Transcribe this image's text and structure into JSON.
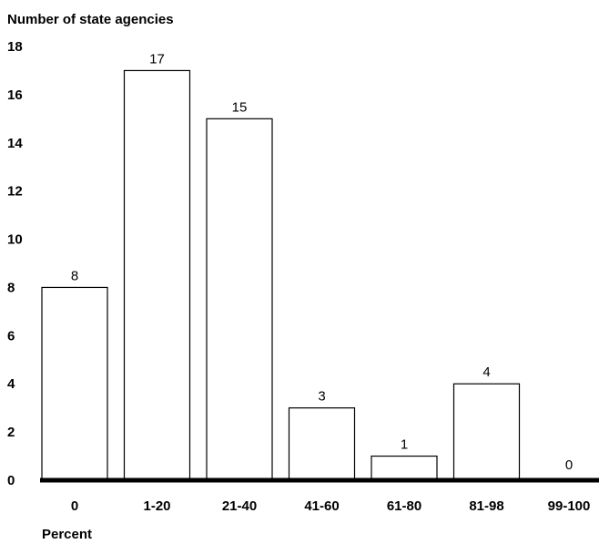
{
  "chart_data": {
    "type": "bar",
    "ylabel": "Number of state agencies",
    "xlabel": "Percent",
    "categories": [
      "0",
      "1-20",
      "21-40",
      "41-60",
      "61-80",
      "81-98",
      "99-100"
    ],
    "values": [
      8,
      17,
      15,
      3,
      1,
      4,
      0
    ],
    "data_labels": [
      "8",
      "17",
      "15",
      "3",
      "1",
      "4",
      "0"
    ],
    "ylim": [
      0,
      18
    ],
    "yticks": [
      "0",
      "2",
      "4",
      "6",
      "8",
      "10",
      "12",
      "14",
      "16",
      "18"
    ],
    "grid": false,
    "bar_color": "#ffffff",
    "bar_outline_color": "#000000",
    "axis_color": "#000000"
  }
}
